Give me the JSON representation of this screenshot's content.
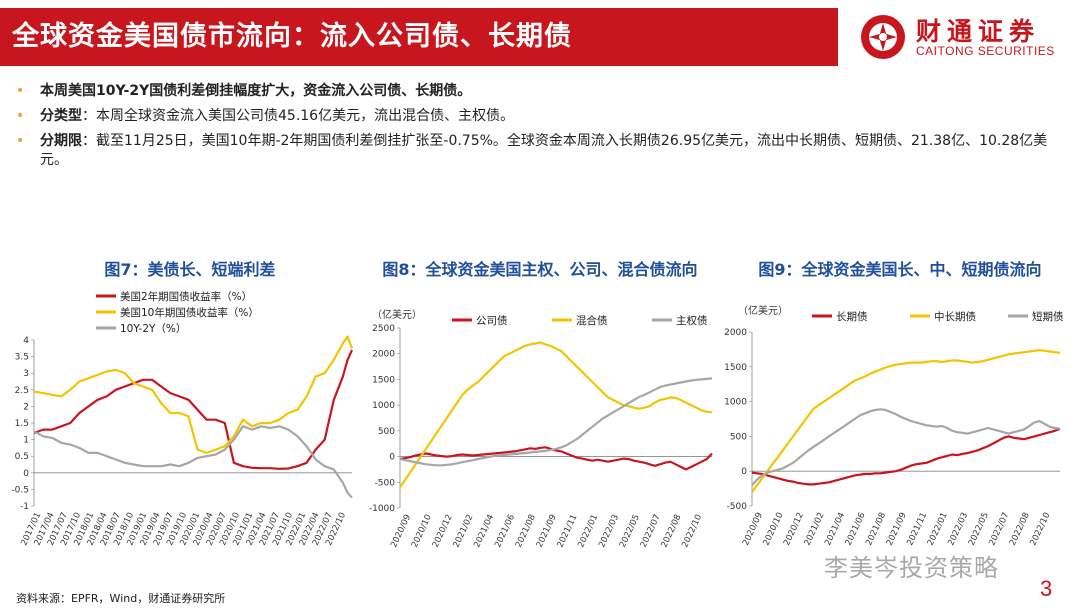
{
  "header": {
    "title": "全球资金美国债市流向：流入公司债、长期债",
    "logo_cn": "财通证券",
    "logo_en": "CAITONG SECURITIES"
  },
  "bullets": [
    {
      "bold": "本周美国10Y-2Y国债利差倒挂幅度扩大，资金流入公司债、长期债。",
      "text": ""
    },
    {
      "bold": "分类型",
      "text": "：本周全球资金流入美国公司债45.16亿美元，流出混合债、主权债。"
    },
    {
      "bold": "分期限",
      "text": "：截至11月25日，美国10年期-2年期国债利差倒挂扩张至-0.75%。全球资金本周流入长期债26.95亿美元，流出中长期债、短期债、21.38亿、10.28亿美元。"
    }
  ],
  "source": "资料来源：EPFR，Wind，财通证券研究所",
  "page_number": "3",
  "watermark": "李美岑投资策略",
  "colors": {
    "red": "#c8161e",
    "yellow": "#f5c400",
    "gray": "#a6a6a6",
    "blue_title": "#1f4e9a"
  },
  "chart_data": [
    {
      "type": "line",
      "title": "图7：美债长、短端利差",
      "ylim": [
        -1,
        4
      ],
      "yticks": [
        "4",
        "3.5",
        "3",
        "2.5",
        "2",
        "1.5",
        "1",
        "0.5",
        "0",
        "-0.5",
        "-1"
      ],
      "xticks": [
        "2017/01",
        "2017/04",
        "2017/07",
        "2017/10",
        "2018/01",
        "2018/04",
        "2018/07",
        "2018/10",
        "2019/01",
        "2019/04",
        "2019/07",
        "2019/10",
        "2020/01",
        "2020/04",
        "2020/07",
        "2020/10",
        "2021/01",
        "2021/04",
        "2021/07",
        "2021/10",
        "2022/01",
        "2022/04",
        "2022/07",
        "2022/10"
      ],
      "legend": [
        "美国2年期国债收益率（%）",
        "美国10年期国债收益率（%）",
        "10Y-2Y（%）"
      ],
      "x": [
        0,
        2,
        4,
        6,
        8,
        10,
        12,
        14,
        16,
        18,
        20,
        22,
        24,
        26,
        28,
        30,
        32,
        34,
        36,
        38,
        40,
        42,
        44,
        46,
        48,
        50,
        52,
        54,
        56,
        58,
        60,
        62,
        64,
        66,
        68,
        69,
        70
      ],
      "series": [
        {
          "name": "美国2年期国债收益率（%）",
          "color": "#c8161e",
          "values": [
            1.2,
            1.3,
            1.3,
            1.4,
            1.5,
            1.8,
            2.0,
            2.2,
            2.3,
            2.5,
            2.6,
            2.7,
            2.8,
            2.8,
            2.6,
            2.4,
            2.3,
            2.2,
            1.9,
            1.6,
            1.6,
            1.5,
            0.3,
            0.2,
            0.15,
            0.14,
            0.14,
            0.12,
            0.13,
            0.2,
            0.3,
            0.7,
            1.0,
            2.2,
            2.9,
            3.4,
            3.7
          ]
        },
        {
          "name": "美国10年期国债收益率（%）",
          "color": "#f5c400",
          "values": [
            2.45,
            2.4,
            2.35,
            2.3,
            2.5,
            2.75,
            2.85,
            2.95,
            3.05,
            3.1,
            3.0,
            2.7,
            2.6,
            2.5,
            2.1,
            1.8,
            1.8,
            1.7,
            0.7,
            0.6,
            0.7,
            0.8,
            1.1,
            1.6,
            1.4,
            1.5,
            1.5,
            1.6,
            1.8,
            1.9,
            2.3,
            2.9,
            3.0,
            3.4,
            3.9,
            4.1,
            3.75
          ]
        },
        {
          "name": "10Y-2Y（%）",
          "color": "#a6a6a6",
          "values": [
            1.25,
            1.1,
            1.05,
            0.9,
            0.85,
            0.75,
            0.6,
            0.6,
            0.5,
            0.4,
            0.3,
            0.25,
            0.2,
            0.2,
            0.2,
            0.25,
            0.2,
            0.3,
            0.45,
            0.5,
            0.55,
            0.7,
            1.0,
            1.4,
            1.3,
            1.4,
            1.35,
            1.4,
            1.3,
            1.1,
            0.8,
            0.4,
            0.2,
            0.1,
            -0.3,
            -0.6,
            -0.75
          ]
        }
      ]
    },
    {
      "type": "line",
      "title": "图8：全球资金美国主权、公司、混合债流向",
      "ylabel": "（亿美元）",
      "ylim": [
        -1000,
        2500
      ],
      "yticks": [
        "2500",
        "2000",
        "1500",
        "1000",
        "500",
        "0",
        "-500",
        "-1000"
      ],
      "xticks": [
        "2020/09",
        "2020/10",
        "2020/12",
        "2021/02",
        "2021/04",
        "2021/06",
        "2021/08",
        "2021/09",
        "2021/11",
        "2022/01",
        "2022/03",
        "2022/05",
        "2022/07",
        "2022/08",
        "2022/10"
      ],
      "legend": [
        "公司债",
        "混合债",
        "主权债"
      ],
      "x": [
        0,
        2,
        4,
        6,
        8,
        10,
        12,
        14,
        16,
        18,
        20,
        22,
        24,
        26,
        28,
        30,
        32,
        34,
        36,
        38,
        40,
        42,
        44,
        46,
        48,
        50,
        52,
        54,
        56,
        58,
        60,
        62,
        64,
        66,
        68,
        70,
        72,
        74,
        76,
        78,
        80,
        82,
        84,
        86,
        88,
        90,
        92,
        94,
        96,
        98,
        100,
        102,
        104,
        106,
        108,
        110,
        112,
        114,
        116,
        118,
        120
      ],
      "series": [
        {
          "name": "公司债",
          "color": "#c8161e",
          "values": [
            -50,
            -30,
            -10,
            20,
            40,
            60,
            40,
            20,
            10,
            0,
            10,
            30,
            40,
            30,
            20,
            30,
            40,
            50,
            60,
            70,
            80,
            90,
            100,
            120,
            140,
            160,
            150,
            170,
            180,
            150,
            120,
            100,
            60,
            20,
            -20,
            -40,
            -60,
            -80,
            -60,
            -80,
            -100,
            -80,
            -60,
            -40,
            -50,
            -80,
            -100,
            -120,
            -150,
            -180,
            -150,
            -120,
            -100,
            -150,
            -200,
            -250,
            -200,
            -150,
            -100,
            -50,
            60
          ]
        },
        {
          "name": "混合债",
          "color": "#f5c400",
          "values": [
            -600,
            -450,
            -300,
            -150,
            0,
            150,
            300,
            450,
            600,
            750,
            900,
            1050,
            1200,
            1300,
            1380,
            1450,
            1550,
            1650,
            1750,
            1850,
            1950,
            2000,
            2050,
            2100,
            2150,
            2180,
            2200,
            2220,
            2180,
            2150,
            2100,
            2050,
            1950,
            1850,
            1750,
            1650,
            1550,
            1450,
            1350,
            1250,
            1150,
            1100,
            1050,
            1000,
            980,
            950,
            930,
            950,
            980,
            1050,
            1100,
            1120,
            1150,
            1140,
            1100,
            1050,
            1000,
            950,
            900,
            870,
            860
          ]
        },
        {
          "name": "主权债",
          "color": "#a6a6a6",
          "values": [
            -50,
            -70,
            -90,
            -110,
            -130,
            -150,
            -160,
            -170,
            -170,
            -160,
            -150,
            -130,
            -110,
            -90,
            -70,
            -50,
            -30,
            -10,
            10,
            20,
            30,
            40,
            50,
            60,
            70,
            80,
            90,
            100,
            110,
            130,
            150,
            180,
            220,
            280,
            340,
            420,
            500,
            580,
            660,
            740,
            800,
            860,
            920,
            980,
            1040,
            1100,
            1160,
            1200,
            1250,
            1300,
            1350,
            1380,
            1400,
            1420,
            1440,
            1460,
            1480,
            1490,
            1500,
            1510,
            1520
          ]
        }
      ]
    },
    {
      "type": "line",
      "title": "图9：全球资金美国长、中、短期债流向",
      "ylabel": "（亿美元）",
      "ylim": [
        -500,
        2000
      ],
      "yticks": [
        "2000",
        "1500",
        "1000",
        "500",
        "0",
        "-500"
      ],
      "xticks": [
        "2020/09",
        "2020/10",
        "2020/12",
        "2021/02",
        "2021/04",
        "2021/06",
        "2021/08",
        "2021/09",
        "2021/11",
        "2022/01",
        "2022/03",
        "2022/05",
        "2022/07",
        "2022/08",
        "2022/10"
      ],
      "legend": [
        "长期债",
        "中长期债",
        "短期债"
      ],
      "x": [
        0,
        2,
        4,
        6,
        8,
        10,
        12,
        14,
        16,
        18,
        20,
        22,
        24,
        26,
        28,
        30,
        32,
        34,
        36,
        38,
        40,
        42,
        44,
        46,
        48,
        50,
        52,
        54,
        56,
        58,
        60,
        62,
        64,
        66,
        68,
        70,
        72,
        74,
        76,
        78,
        80,
        82,
        84,
        86,
        88,
        90,
        92,
        94,
        96,
        98,
        100,
        102,
        104,
        106,
        108,
        110,
        112,
        114,
        116,
        118,
        120
      ],
      "series": [
        {
          "name": "长期债",
          "color": "#c8161e",
          "values": [
            -20,
            -30,
            -40,
            -60,
            -80,
            -100,
            -120,
            -140,
            -150,
            -170,
            -180,
            -190,
            -190,
            -180,
            -170,
            -160,
            -140,
            -120,
            -100,
            -80,
            -60,
            -50,
            -40,
            -40,
            -30,
            -30,
            -20,
            -10,
            0,
            20,
            50,
            80,
            100,
            110,
            120,
            150,
            180,
            200,
            220,
            240,
            230,
            250,
            260,
            280,
            300,
            330,
            360,
            400,
            440,
            480,
            500,
            480,
            470,
            460,
            480,
            500,
            520,
            540,
            560,
            580,
            610
          ]
        },
        {
          "name": "中长期债",
          "color": "#f5c400",
          "values": [
            -300,
            -200,
            -100,
            0,
            100,
            200,
            300,
            400,
            500,
            600,
            700,
            800,
            900,
            950,
            1000,
            1050,
            1100,
            1150,
            1200,
            1250,
            1300,
            1330,
            1360,
            1400,
            1430,
            1460,
            1490,
            1510,
            1530,
            1540,
            1550,
            1560,
            1560,
            1560,
            1570,
            1580,
            1580,
            1570,
            1580,
            1590,
            1590,
            1580,
            1570,
            1560,
            1570,
            1580,
            1600,
            1620,
            1640,
            1660,
            1680,
            1690,
            1700,
            1710,
            1720,
            1730,
            1740,
            1730,
            1720,
            1710,
            1700
          ]
        },
        {
          "name": "短期债",
          "color": "#a6a6a6",
          "values": [
            -200,
            -120,
            -60,
            -20,
            0,
            20,
            40,
            80,
            120,
            180,
            240,
            300,
            350,
            400,
            450,
            500,
            550,
            600,
            650,
            700,
            750,
            800,
            830,
            860,
            880,
            890,
            880,
            850,
            820,
            780,
            750,
            720,
            700,
            680,
            660,
            650,
            640,
            650,
            620,
            580,
            560,
            550,
            540,
            560,
            580,
            600,
            620,
            600,
            580,
            560,
            540,
            560,
            580,
            600,
            650,
            700,
            720,
            680,
            640,
            620,
            610
          ]
        }
      ]
    }
  ]
}
